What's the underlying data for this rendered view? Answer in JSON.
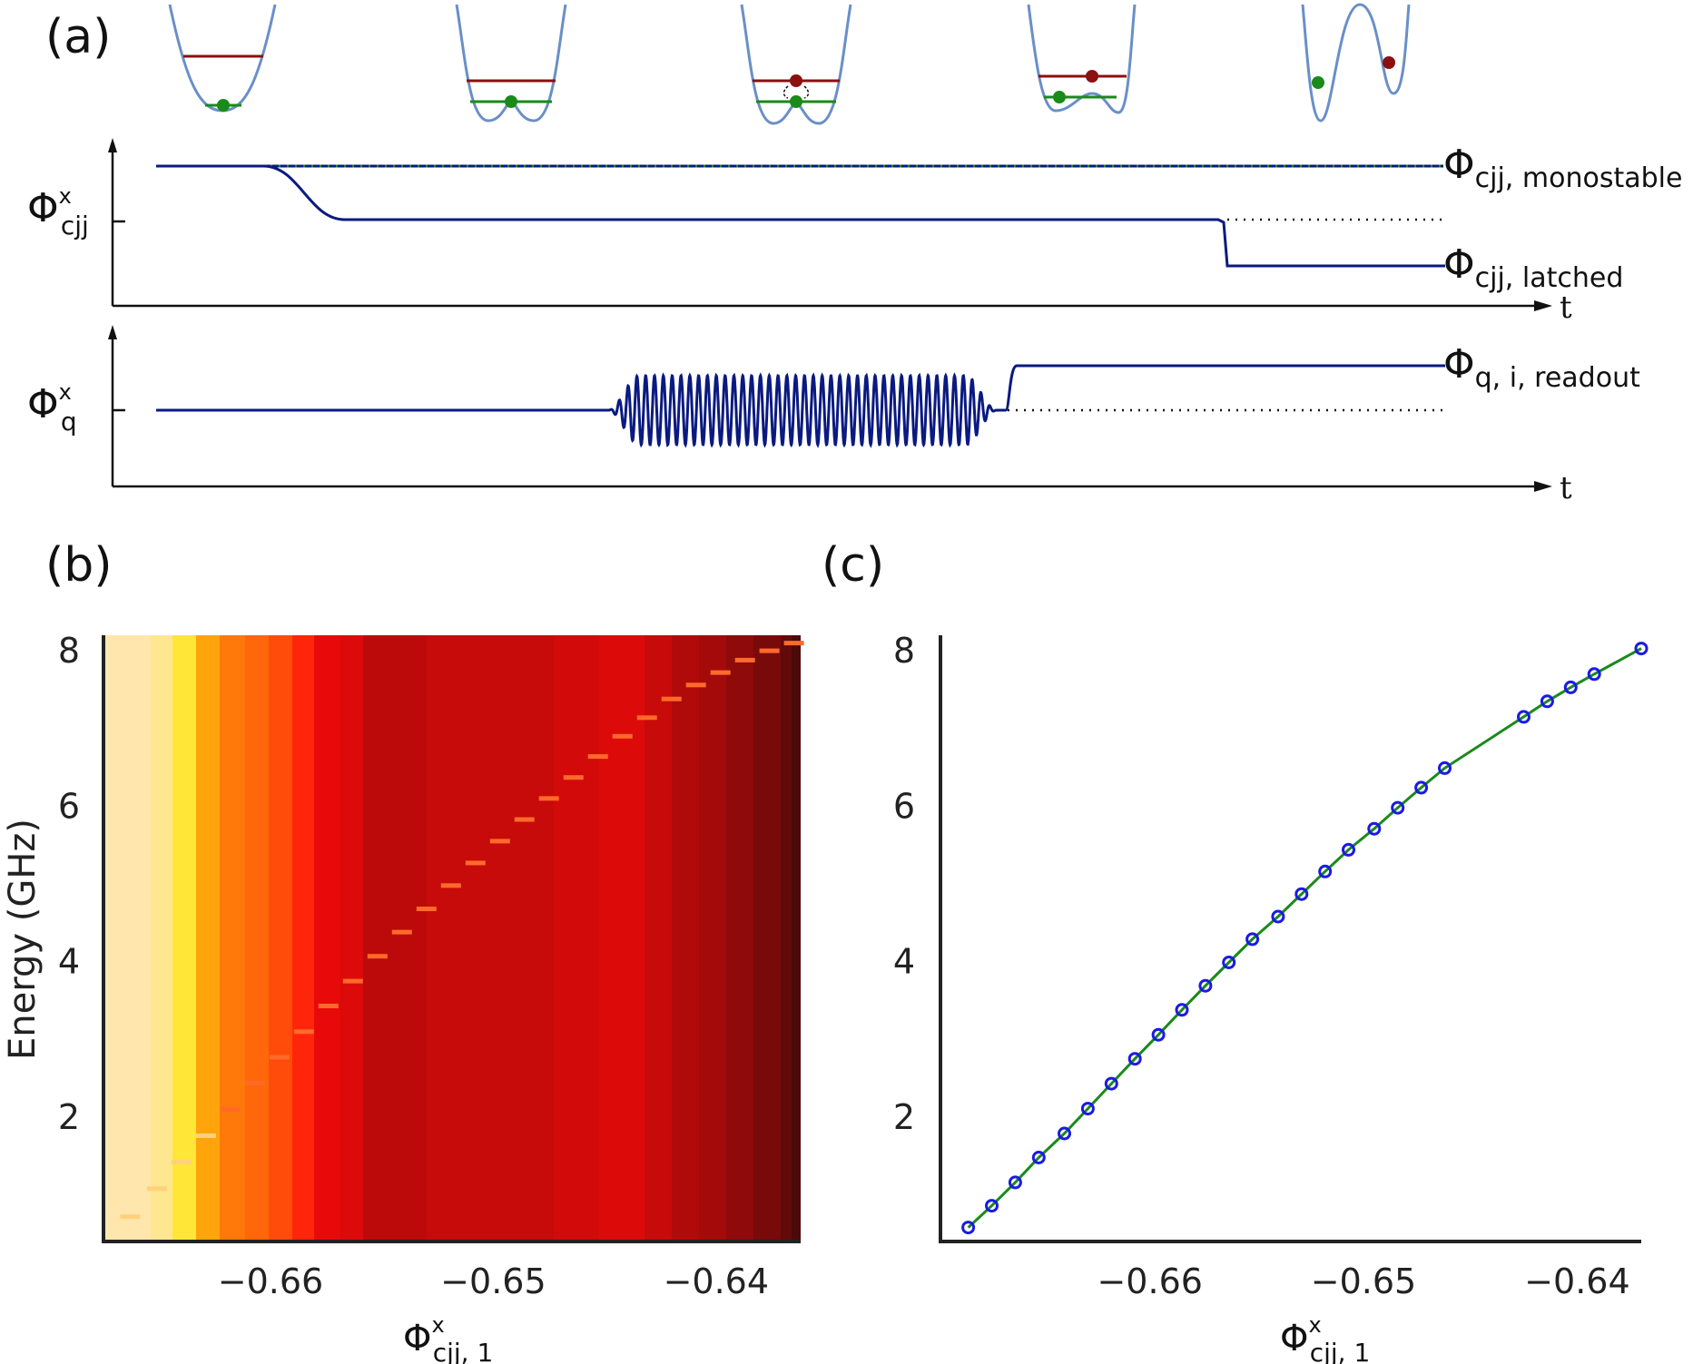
{
  "panel_labels": {
    "a": "(a)",
    "b": "(b)",
    "c": "(c)"
  },
  "panel_a": {
    "top_axis": {
      "y_symbol": "Φ",
      "y_sup": "x",
      "y_sub": "cjj",
      "t_label": "t"
    },
    "bottom_axis": {
      "y_symbol": "Φ",
      "y_sup": "x",
      "y_sub": "q",
      "t_label": "t"
    },
    "curve_labels": {
      "monostable": {
        "symbol": "Φ",
        "sub": "cjj, monostable"
      },
      "latched": {
        "symbol": "Φ",
        "sub": "cjj, latched"
      },
      "readout": {
        "symbol": "Φ",
        "sub": "q, i, readout"
      }
    },
    "colors": {
      "well": "#6a8fc8",
      "excited_level": "#8b1010",
      "ground_level": "#1a8a1a",
      "trace": "#0a1a80"
    }
  },
  "panel_b": {
    "ylabel": "Energy (GHz)",
    "xlabel": {
      "symbol": "Φ",
      "sup": "x",
      "sub": "cjj, 1"
    },
    "xticks": [
      "−0.66",
      "−0.65",
      "−0.64"
    ],
    "yticks": [
      "2",
      "4",
      "6",
      "8"
    ],
    "colormap": "hot"
  },
  "panel_c": {
    "xlabel": {
      "symbol": "Φ",
      "sup": "x",
      "sub": "cjj, 1"
    },
    "xticks": [
      "−0.66",
      "−0.65",
      "−0.64"
    ],
    "yticks": [
      "2",
      "4",
      "6",
      "8"
    ],
    "colors": {
      "points": "#1a1ae6",
      "fit": "#1a8a1a"
    }
  },
  "chart_data": [
    {
      "type": "heatmap",
      "xlabel": "Φ^x_cjj,1",
      "ylabel": "Energy (GHz)",
      "xlim": [
        -0.6675,
        -0.6362
      ],
      "ylim": [
        0.4,
        8.2
      ],
      "xticks": [
        -0.66,
        -0.65,
        -0.64
      ],
      "yticks": [
        2,
        4,
        6,
        8
      ],
      "column_intensity": [
        0.98,
        0.98,
        0.95,
        0.85,
        0.68,
        0.6,
        0.57,
        0.52,
        0.45,
        0.36,
        0.34,
        0.28,
        0.3,
        0.3,
        0.32,
        0.34,
        0.3,
        0.26,
        0.24,
        0.2,
        0.16,
        0.12,
        0.08
      ],
      "peak_x": [
        -0.6663,
        -0.6651,
        -0.664,
        -0.6629,
        -0.6618,
        -0.6607,
        -0.6596,
        -0.6585,
        -0.6574,
        -0.6563,
        -0.6552,
        -0.6541,
        -0.653,
        -0.6519,
        -0.6508,
        -0.6497,
        -0.6486,
        -0.6475,
        -0.6464,
        -0.6453,
        -0.6442,
        -0.6431,
        -0.642,
        -0.6409,
        -0.6398,
        -0.6387,
        -0.6376,
        -0.6365
      ],
      "peak_y": [
        0.72,
        1.08,
        1.42,
        1.76,
        2.1,
        2.44,
        2.77,
        3.1,
        3.43,
        3.75,
        4.07,
        4.38,
        4.68,
        4.98,
        5.27,
        5.55,
        5.83,
        6.1,
        6.37,
        6.64,
        6.9,
        7.14,
        7.38,
        7.56,
        7.72,
        7.88,
        8.0,
        8.1
      ]
    },
    {
      "type": "scatter",
      "xlabel": "Φ^x_cjj,1",
      "ylabel": "",
      "xlim": [
        -0.6698,
        -0.637
      ],
      "ylim": [
        0.4,
        8.2
      ],
      "xticks": [
        -0.66,
        -0.65,
        -0.64
      ],
      "yticks": [
        2,
        4,
        6,
        8
      ],
      "series": [
        {
          "x": [
            -0.6685,
            -0.6674,
            -0.6663,
            -0.6652,
            -0.664,
            -0.6629,
            -0.6618,
            -0.6607,
            -0.6596,
            -0.6585,
            -0.6574,
            -0.6563,
            -0.6552,
            -0.654,
            -0.6529,
            -0.6518,
            -0.6507,
            -0.6495,
            -0.6484,
            -0.6473,
            -0.6462,
            -0.6425,
            -0.6414,
            -0.6403,
            -0.6392,
            -0.637
          ],
          "y": [
            0.58,
            0.86,
            1.16,
            1.48,
            1.79,
            2.11,
            2.43,
            2.75,
            3.06,
            3.38,
            3.69,
            3.99,
            4.29,
            4.58,
            4.87,
            5.16,
            5.44,
            5.71,
            5.98,
            6.24,
            6.49,
            7.15,
            7.35,
            7.53,
            7.7,
            8.03
          ]
        }
      ]
    }
  ]
}
